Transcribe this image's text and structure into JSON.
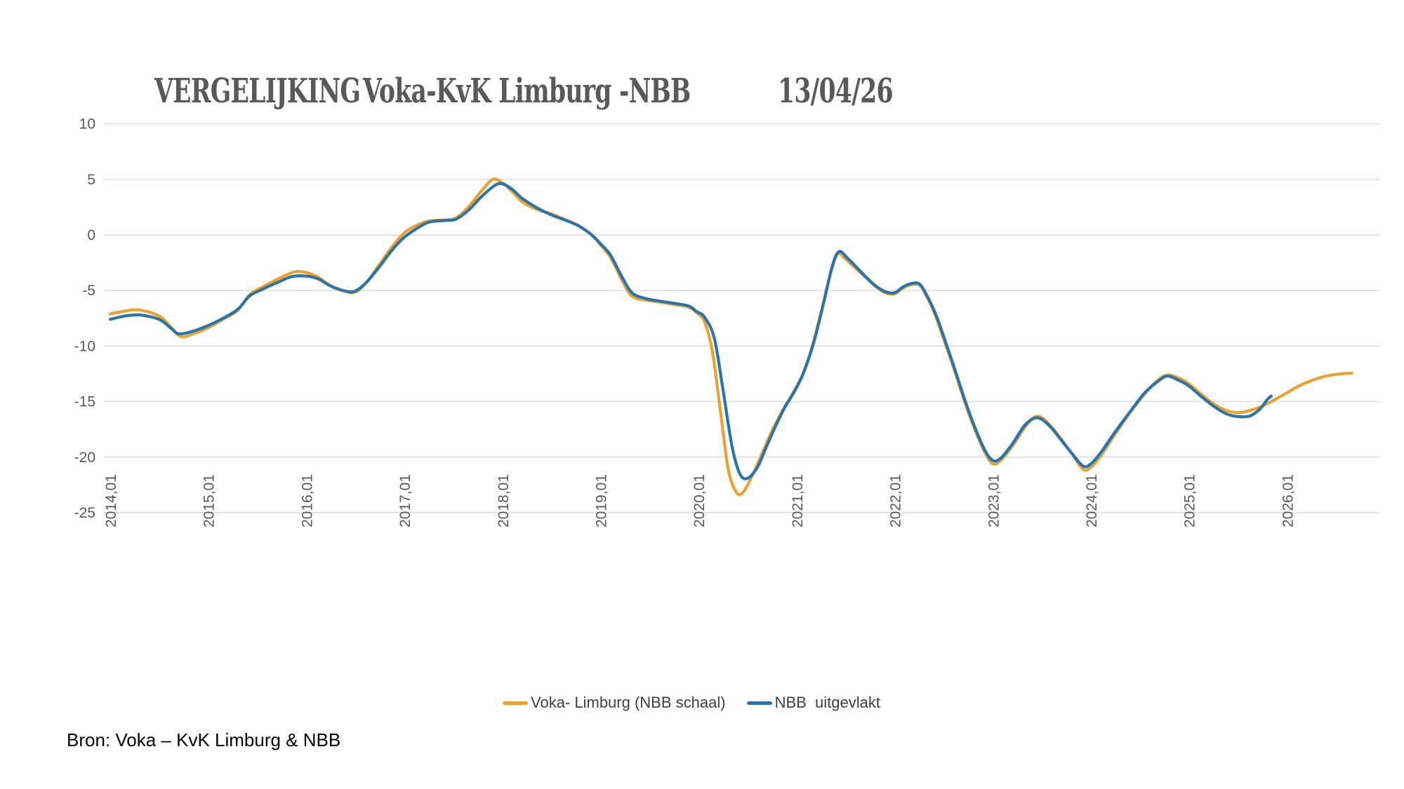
{
  "title": {
    "left": "VERGELIJKING",
    "middle": "Voka-KvK Limburg -NBB",
    "right": "13/04/26"
  },
  "source_note": "Bron: Voka – KvK Limburg & NBB",
  "colors": {
    "voka_orange": "#EBA134",
    "nbb_blue": "#2C73A8",
    "gridline": "#D9D9D9",
    "axis_text": "#595959",
    "title_text": "#595959",
    "legend_text": "#404040",
    "source_text": "#000000"
  },
  "chart_data": {
    "type": "line",
    "title": "VERGELIJKING Voka-KvK Limburg -NBB 13/04/26",
    "xlabel": "",
    "ylabel": "",
    "ylim": [
      -25,
      10
    ],
    "y_ticks": [
      10,
      5,
      0,
      -5,
      -10,
      -15,
      -20,
      -25
    ],
    "grid": true,
    "legend_position": "bottom",
    "x_ticks": [
      {
        "year": 2014,
        "label": "2014,01"
      },
      {
        "year": 2015,
        "label": "2015,01"
      },
      {
        "year": 2016,
        "label": "2016,01"
      },
      {
        "year": 2017,
        "label": "2017,01"
      },
      {
        "year": 2018,
        "label": "2018,01"
      },
      {
        "year": 2019,
        "label": "2019,01"
      },
      {
        "year": 2020,
        "label": "2020,01"
      },
      {
        "year": 2021,
        "label": "2021,01"
      },
      {
        "year": 2022,
        "label": "2022,01"
      },
      {
        "year": 2023,
        "label": "2023,01"
      },
      {
        "year": 2024,
        "label": "2024,01"
      },
      {
        "year": 2025,
        "label": "2025,01"
      },
      {
        "year": 2026,
        "label": "2026,01"
      }
    ],
    "series": [
      {
        "id": "voka-limburg",
        "name": "Voka- Limburg (NBB schaal)",
        "color": "#EBA134",
        "points": [
          [
            2014.0,
            -7.1
          ],
          [
            2014.15,
            -6.85
          ],
          [
            2014.3,
            -6.75
          ],
          [
            2014.5,
            -7.3
          ],
          [
            2014.62,
            -8.3
          ],
          [
            2014.72,
            -9.15
          ],
          [
            2014.85,
            -8.9
          ],
          [
            2015.0,
            -8.35
          ],
          [
            2015.15,
            -7.6
          ],
          [
            2015.3,
            -6.8
          ],
          [
            2015.42,
            -5.4
          ],
          [
            2015.55,
            -4.7
          ],
          [
            2015.7,
            -4.0
          ],
          [
            2015.85,
            -3.4
          ],
          [
            2015.95,
            -3.3
          ],
          [
            2016.1,
            -3.7
          ],
          [
            2016.25,
            -4.6
          ],
          [
            2016.4,
            -5.1
          ],
          [
            2016.5,
            -5.15
          ],
          [
            2016.62,
            -4.2
          ],
          [
            2016.75,
            -2.6
          ],
          [
            2016.88,
            -1.0
          ],
          [
            2017.0,
            0.2
          ],
          [
            2017.12,
            0.85
          ],
          [
            2017.25,
            1.25
          ],
          [
            2017.4,
            1.35
          ],
          [
            2017.52,
            1.5
          ],
          [
            2017.65,
            2.5
          ],
          [
            2017.78,
            3.9
          ],
          [
            2017.9,
            5.0
          ],
          [
            2018.0,
            4.7
          ],
          [
            2018.1,
            3.9
          ],
          [
            2018.2,
            3.0
          ],
          [
            2018.35,
            2.3
          ],
          [
            2018.5,
            1.9
          ],
          [
            2018.62,
            1.45
          ],
          [
            2018.77,
            0.85
          ],
          [
            2018.91,
            0.0
          ],
          [
            2019.0,
            -0.9
          ],
          [
            2019.1,
            -2.0
          ],
          [
            2019.22,
            -4.1
          ],
          [
            2019.32,
            -5.5
          ],
          [
            2019.45,
            -5.85
          ],
          [
            2019.6,
            -6.05
          ],
          [
            2019.75,
            -6.25
          ],
          [
            2019.9,
            -6.5
          ],
          [
            2019.98,
            -7.0
          ],
          [
            2020.06,
            -7.8
          ],
          [
            2020.14,
            -10.5
          ],
          [
            2020.22,
            -15.7
          ],
          [
            2020.3,
            -21.0
          ],
          [
            2020.38,
            -23.1
          ],
          [
            2020.45,
            -23.2
          ],
          [
            2020.55,
            -21.6
          ],
          [
            2020.65,
            -19.6
          ],
          [
            2020.75,
            -17.6
          ],
          [
            2020.85,
            -15.9
          ],
          [
            2020.95,
            -14.4
          ],
          [
            2021.05,
            -12.8
          ],
          [
            2021.15,
            -10.3
          ],
          [
            2021.25,
            -6.9
          ],
          [
            2021.35,
            -3.3
          ],
          [
            2021.42,
            -1.7
          ],
          [
            2021.5,
            -2.2
          ],
          [
            2021.6,
            -3.0
          ],
          [
            2021.7,
            -3.8
          ],
          [
            2021.8,
            -4.6
          ],
          [
            2021.9,
            -5.2
          ],
          [
            2022.0,
            -5.3
          ],
          [
            2022.08,
            -4.8
          ],
          [
            2022.16,
            -4.5
          ],
          [
            2022.25,
            -4.5
          ],
          [
            2022.33,
            -5.6
          ],
          [
            2022.42,
            -7.4
          ],
          [
            2022.52,
            -9.9
          ],
          [
            2022.62,
            -12.5
          ],
          [
            2022.72,
            -15.2
          ],
          [
            2022.82,
            -17.6
          ],
          [
            2022.92,
            -19.6
          ],
          [
            2023.0,
            -20.6
          ],
          [
            2023.08,
            -20.3
          ],
          [
            2023.2,
            -19.0
          ],
          [
            2023.32,
            -17.4
          ],
          [
            2023.42,
            -16.4
          ],
          [
            2023.5,
            -16.45
          ],
          [
            2023.6,
            -17.3
          ],
          [
            2023.7,
            -18.4
          ],
          [
            2023.8,
            -19.6
          ],
          [
            2023.92,
            -21.1
          ],
          [
            2024.0,
            -20.9
          ],
          [
            2024.1,
            -19.9
          ],
          [
            2024.25,
            -17.9
          ],
          [
            2024.4,
            -16.0
          ],
          [
            2024.55,
            -14.3
          ],
          [
            2024.68,
            -13.1
          ],
          [
            2024.78,
            -12.6
          ],
          [
            2024.9,
            -12.9
          ],
          [
            2025.0,
            -13.4
          ],
          [
            2025.12,
            -14.3
          ],
          [
            2025.25,
            -15.2
          ],
          [
            2025.38,
            -15.8
          ],
          [
            2025.5,
            -16.0
          ],
          [
            2025.62,
            -15.8
          ],
          [
            2025.75,
            -15.4
          ],
          [
            2025.88,
            -14.8
          ],
          [
            2026.0,
            -14.2
          ],
          [
            2026.12,
            -13.6
          ],
          [
            2026.25,
            -13.1
          ],
          [
            2026.4,
            -12.7
          ],
          [
            2026.55,
            -12.5
          ],
          [
            2026.66,
            -12.45
          ]
        ]
      },
      {
        "id": "nbb-uitgevlakt",
        "name": "NBB  uitgevlakt",
        "color": "#2C73A8",
        "points": [
          [
            2014.0,
            -7.6
          ],
          [
            2014.15,
            -7.3
          ],
          [
            2014.3,
            -7.2
          ],
          [
            2014.5,
            -7.6
          ],
          [
            2014.62,
            -8.4
          ],
          [
            2014.7,
            -8.9
          ],
          [
            2014.85,
            -8.65
          ],
          [
            2015.0,
            -8.15
          ],
          [
            2015.15,
            -7.5
          ],
          [
            2015.3,
            -6.7
          ],
          [
            2015.42,
            -5.5
          ],
          [
            2015.55,
            -4.9
          ],
          [
            2015.7,
            -4.3
          ],
          [
            2015.85,
            -3.75
          ],
          [
            2016.0,
            -3.7
          ],
          [
            2016.12,
            -3.95
          ],
          [
            2016.25,
            -4.6
          ],
          [
            2016.4,
            -5.05
          ],
          [
            2016.5,
            -5.05
          ],
          [
            2016.62,
            -4.2
          ],
          [
            2016.75,
            -2.8
          ],
          [
            2016.88,
            -1.3
          ],
          [
            2017.0,
            -0.2
          ],
          [
            2017.12,
            0.55
          ],
          [
            2017.25,
            1.15
          ],
          [
            2017.4,
            1.3
          ],
          [
            2017.52,
            1.4
          ],
          [
            2017.65,
            2.2
          ],
          [
            2017.78,
            3.4
          ],
          [
            2017.92,
            4.45
          ],
          [
            2018.0,
            4.6
          ],
          [
            2018.1,
            4.1
          ],
          [
            2018.2,
            3.3
          ],
          [
            2018.35,
            2.45
          ],
          [
            2018.5,
            1.8
          ],
          [
            2018.62,
            1.4
          ],
          [
            2018.77,
            0.85
          ],
          [
            2018.91,
            0.0
          ],
          [
            2019.0,
            -0.8
          ],
          [
            2019.1,
            -1.8
          ],
          [
            2019.22,
            -3.8
          ],
          [
            2019.32,
            -5.2
          ],
          [
            2019.45,
            -5.7
          ],
          [
            2019.6,
            -5.95
          ],
          [
            2019.75,
            -6.15
          ],
          [
            2019.9,
            -6.4
          ],
          [
            2019.98,
            -6.9
          ],
          [
            2020.06,
            -7.4
          ],
          [
            2020.16,
            -9.3
          ],
          [
            2020.25,
            -14.0
          ],
          [
            2020.34,
            -19.0
          ],
          [
            2020.42,
            -21.5
          ],
          [
            2020.5,
            -21.9
          ],
          [
            2020.6,
            -20.9
          ],
          [
            2020.68,
            -19.3
          ],
          [
            2020.78,
            -17.3
          ],
          [
            2020.88,
            -15.5
          ],
          [
            2020.97,
            -14.2
          ],
          [
            2021.07,
            -12.4
          ],
          [
            2021.17,
            -9.8
          ],
          [
            2021.27,
            -6.3
          ],
          [
            2021.36,
            -2.9
          ],
          [
            2021.43,
            -1.5
          ],
          [
            2021.52,
            -2.1
          ],
          [
            2021.62,
            -3.0
          ],
          [
            2021.72,
            -3.9
          ],
          [
            2021.82,
            -4.7
          ],
          [
            2021.92,
            -5.15
          ],
          [
            2022.0,
            -5.2
          ],
          [
            2022.08,
            -4.7
          ],
          [
            2022.16,
            -4.4
          ],
          [
            2022.25,
            -4.4
          ],
          [
            2022.33,
            -5.5
          ],
          [
            2022.42,
            -7.2
          ],
          [
            2022.52,
            -9.7
          ],
          [
            2022.62,
            -12.3
          ],
          [
            2022.72,
            -15.0
          ],
          [
            2022.82,
            -17.4
          ],
          [
            2022.92,
            -19.4
          ],
          [
            2023.0,
            -20.3
          ],
          [
            2023.08,
            -20.1
          ],
          [
            2023.2,
            -18.8
          ],
          [
            2023.32,
            -17.2
          ],
          [
            2023.42,
            -16.5
          ],
          [
            2023.5,
            -16.6
          ],
          [
            2023.6,
            -17.4
          ],
          [
            2023.7,
            -18.5
          ],
          [
            2023.8,
            -19.6
          ],
          [
            2023.92,
            -20.8
          ],
          [
            2024.0,
            -20.6
          ],
          [
            2024.1,
            -19.6
          ],
          [
            2024.25,
            -17.7
          ],
          [
            2024.4,
            -15.9
          ],
          [
            2024.55,
            -14.2
          ],
          [
            2024.68,
            -13.2
          ],
          [
            2024.78,
            -12.7
          ],
          [
            2024.9,
            -13.1
          ],
          [
            2025.0,
            -13.6
          ],
          [
            2025.12,
            -14.5
          ],
          [
            2025.25,
            -15.4
          ],
          [
            2025.38,
            -16.1
          ],
          [
            2025.5,
            -16.35
          ],
          [
            2025.62,
            -16.3
          ],
          [
            2025.72,
            -15.7
          ],
          [
            2025.8,
            -14.8
          ],
          [
            2025.84,
            -14.5
          ]
        ]
      }
    ]
  }
}
